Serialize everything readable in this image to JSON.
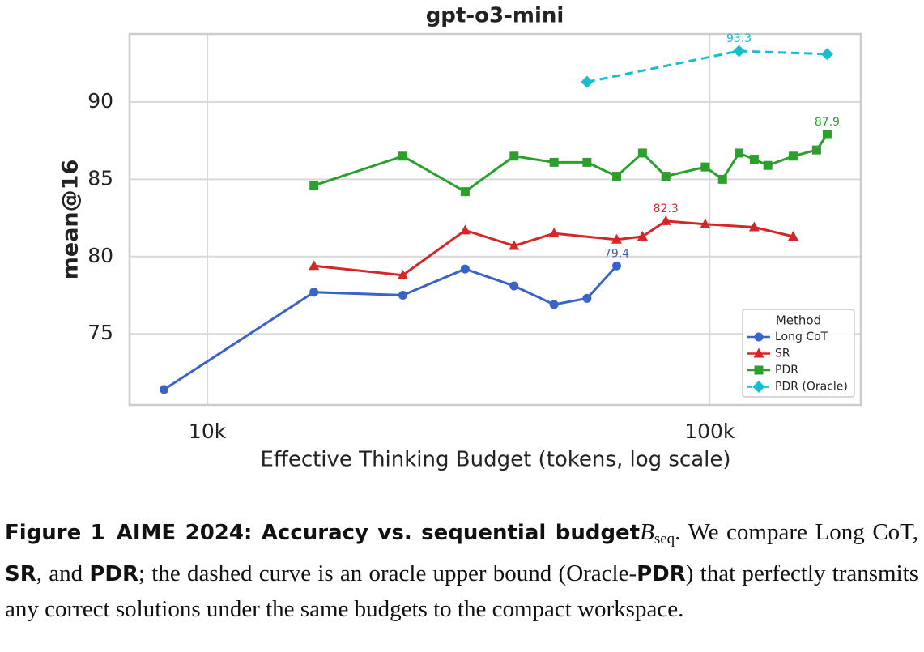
{
  "chart_data": {
    "type": "line",
    "title": "gpt-o3-mini",
    "x_label": "Effective Thinking Budget (tokens, log scale)",
    "y_label": "mean@16",
    "xscale": "log",
    "xlim": [
      7000,
      200000
    ],
    "ylim": [
      70.4,
      94.4
    ],
    "xticks": [
      {
        "value": 10000,
        "label": "10k"
      },
      {
        "value": 100000,
        "label": "100k"
      }
    ],
    "yticks": [
      75,
      80,
      85,
      90
    ],
    "grid": true,
    "legend_title": "Method",
    "legend_position": "lower right",
    "series": [
      {
        "name": "Long CoT",
        "color": "#3a63c8",
        "marker": "circle",
        "dashed": false,
        "x": [
          8200,
          16300,
          24500,
          32600,
          40800,
          49000,
          57000,
          65300
        ],
        "values": [
          71.4,
          77.7,
          77.5,
          79.2,
          78.1,
          76.9,
          77.3,
          79.4
        ],
        "value_labels": [
          null,
          null,
          null,
          null,
          null,
          null,
          null,
          "79.4"
        ]
      },
      {
        "name": "SR",
        "color": "#d62728",
        "marker": "triangle",
        "dashed": false,
        "x": [
          16300,
          24500,
          32600,
          40800,
          49000,
          65300,
          73500,
          81800,
          98000,
          122700,
          146700
        ],
        "values": [
          79.4,
          78.8,
          81.7,
          80.7,
          81.5,
          81.1,
          81.3,
          82.3,
          82.1,
          81.9,
          81.3
        ],
        "value_labels": [
          null,
          null,
          null,
          null,
          null,
          null,
          null,
          "82.3",
          null,
          null,
          null
        ]
      },
      {
        "name": "PDR",
        "color": "#2ca02c",
        "marker": "square",
        "dashed": false,
        "x": [
          16300,
          24500,
          32600,
          40800,
          49000,
          57000,
          65300,
          73500,
          81800,
          98000,
          106100,
          114400,
          122700,
          130600,
          146700,
          163300,
          171400
        ],
        "values": [
          84.6,
          86.5,
          84.2,
          86.5,
          86.1,
          86.1,
          85.2,
          86.7,
          85.2,
          85.8,
          85.0,
          86.7,
          86.3,
          85.9,
          86.5,
          86.9,
          87.9
        ],
        "value_labels": [
          null,
          null,
          null,
          null,
          null,
          null,
          null,
          null,
          null,
          null,
          null,
          null,
          null,
          null,
          null,
          null,
          "87.9"
        ]
      },
      {
        "name": "PDR (Oracle)",
        "color": "#17becf",
        "marker": "diamond",
        "dashed": true,
        "x": [
          57000,
          114400,
          171400
        ],
        "values": [
          91.3,
          93.3,
          93.1
        ],
        "value_labels": [
          null,
          "93.3",
          null
        ]
      }
    ]
  },
  "caption": [
    {
      "text": "Figure 1",
      "style": "sans-bold"
    },
    {
      "text": "AIME 2024: Accuracy vs. sequential budget",
      "style": "sans-bold"
    },
    {
      "text": "B",
      "style": "math"
    },
    {
      "text": "seq",
      "style": "sub"
    },
    {
      "text": ". We compare Long CoT, ",
      "style": "serif"
    },
    {
      "text": "SR",
      "style": "sans-bold"
    },
    {
      "text": ", and ",
      "style": "serif"
    },
    {
      "text": "PDR",
      "style": "sans-bold"
    },
    {
      "text": "; the dashed curve is an oracle upper bound (Oracle-",
      "style": "serif"
    },
    {
      "text": "PDR",
      "style": "sans-bold"
    },
    {
      "text": ") that perfectly transmits any correct solutions under the same budgets to the compact workspace.",
      "style": "serif"
    }
  ]
}
